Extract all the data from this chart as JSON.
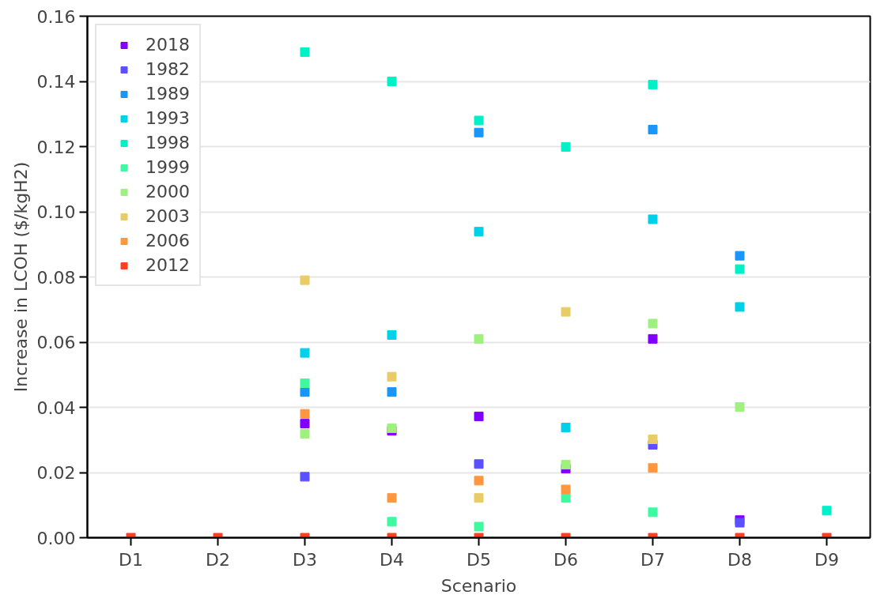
{
  "chart_data": {
    "type": "scatter",
    "marker": "square",
    "xlabel": "Scenario",
    "ylabel": "Increase in LCOH ($/kgH2)",
    "categories": [
      "D1",
      "D2",
      "D3",
      "D4",
      "D5",
      "D6",
      "D7",
      "D8",
      "D9"
    ],
    "ylim": [
      0,
      0.16
    ],
    "yticks": [
      {
        "value": 0,
        "label": "0.00"
      },
      {
        "value": 0.02,
        "label": "0.02"
      },
      {
        "value": 0.04,
        "label": "0.04"
      },
      {
        "value": 0.06,
        "label": "0.06"
      },
      {
        "value": 0.08,
        "label": "0.08"
      },
      {
        "value": 0.1,
        "label": "0.10"
      },
      {
        "value": 0.12,
        "label": "0.12"
      },
      {
        "value": 0.14,
        "label": "0.14"
      },
      {
        "value": 0.16,
        "label": "0.16"
      }
    ],
    "grid": "y",
    "legend": "top left",
    "series": [
      {
        "name": "2018",
        "color": "#8000ff",
        "values": [
          null,
          null,
          0.035,
          0.0328,
          0.0372,
          0.0212,
          0.061,
          0.0054,
          null
        ]
      },
      {
        "name": "1982",
        "color": "#5a50ff",
        "values": [
          null,
          null,
          0.0187,
          null,
          0.0226,
          null,
          0.0285,
          0.0046,
          null
        ]
      },
      {
        "name": "1989",
        "color": "#1a96f8",
        "values": [
          null,
          null,
          0.0447,
          0.0447,
          0.1243,
          null,
          0.1252,
          0.0865,
          null
        ]
      },
      {
        "name": "1993",
        "color": "#00d0e8",
        "values": [
          null,
          null,
          0.0567,
          0.0622,
          0.0939,
          0.0338,
          0.0977,
          0.0708,
          null
        ]
      },
      {
        "name": "1998",
        "color": "#00f0c8",
        "values": [
          null,
          null,
          0.149,
          0.14,
          0.128,
          0.1199,
          0.139,
          0.0824,
          0.0083
        ]
      },
      {
        "name": "1999",
        "color": "#40f8a0",
        "values": [
          null,
          null,
          0.0474,
          0.0049,
          0.0034,
          0.0122,
          0.0078,
          null,
          null
        ]
      },
      {
        "name": "2000",
        "color": "#a0f080",
        "values": [
          null,
          null,
          0.0319,
          0.0336,
          0.061,
          0.0224,
          0.0657,
          0.0401,
          null
        ]
      },
      {
        "name": "2003",
        "color": "#e8cc68",
        "values": [
          null,
          null,
          0.079,
          0.0494,
          0.0122,
          0.0693,
          0.0302,
          null,
          null
        ]
      },
      {
        "name": "2006",
        "color": "#ff9640",
        "values": [
          null,
          null,
          0.038,
          0.0122,
          0.0175,
          0.0148,
          0.0214,
          null,
          null
        ]
      },
      {
        "name": "2012",
        "color": "#ff4020",
        "values": [
          0,
          0,
          0,
          0,
          0,
          0,
          0,
          0,
          0
        ]
      }
    ]
  }
}
